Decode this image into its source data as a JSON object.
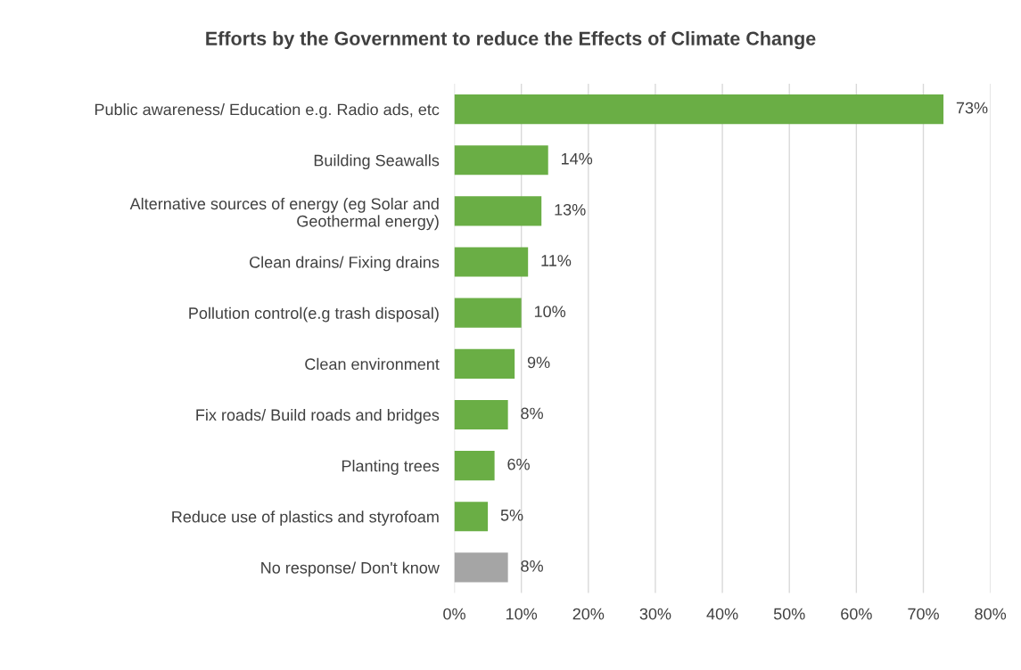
{
  "chart_data": {
    "type": "bar",
    "orientation": "horizontal",
    "title": "Efforts by the Government to reduce the Effects of Climate Change",
    "categories": [
      "Public awareness/ Education e.g. Radio ads, etc",
      "Building Seawalls",
      "Alternative sources of energy (eg Solar and\nGeothermal energy)",
      "Clean drains/ Fixing drains",
      "Pollution control(e.g trash disposal)",
      "Clean environment",
      "Fix roads/ Build roads and bridges",
      "Planting trees",
      "Reduce use of plastics and styrofoam",
      "No response/ Don't know"
    ],
    "values": [
      73,
      14,
      13,
      11,
      10,
      9,
      8,
      6,
      5,
      8
    ],
    "colors": [
      "#6aae45",
      "#6aae45",
      "#6aae45",
      "#6aae45",
      "#6aae45",
      "#6aae45",
      "#6aae45",
      "#6aae45",
      "#6aae45",
      "#a5a5a5"
    ],
    "value_labels": [
      "73%",
      "14%",
      "13%",
      "11%",
      "10%",
      "9%",
      "8%",
      "6%",
      "5%",
      "8%"
    ],
    "xlim": [
      0,
      80
    ],
    "xticks": [
      {
        "value": 0,
        "label": "0%"
      },
      {
        "value": 10,
        "label": "10%"
      },
      {
        "value": 20,
        "label": "20%"
      },
      {
        "value": 30,
        "label": "30%"
      },
      {
        "value": 40,
        "label": "40%"
      },
      {
        "value": 50,
        "label": "50%"
      },
      {
        "value": 60,
        "label": "60%"
      },
      {
        "value": 70,
        "label": "70%"
      },
      {
        "value": 80,
        "label": "80%"
      }
    ],
    "grid": "x"
  }
}
